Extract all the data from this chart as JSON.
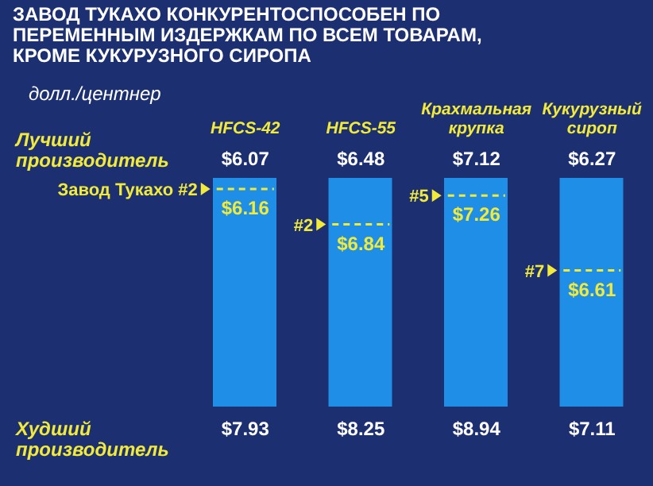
{
  "chart_data": {
    "type": "other",
    "title": "ЗАВОД ТУКАХО КОНКУРЕНТОСПОСОБЕН ПО ПЕРЕМЕННЫМ ИЗДЕРЖКАМ ПО ВСЕМ ТОВАРАМ, КРОМЕ КУКУРУЗНОГО СИРОПА",
    "ylabel": "долл./центнер",
    "categories": [
      "HFCS-42",
      "HFCS-55",
      "Крахмальная крупка",
      "Кукурузный сироп"
    ],
    "series": [
      {
        "name": "Лучший производитель",
        "values": [
          6.07,
          6.48,
          7.12,
          6.27
        ],
        "value_labels": [
          "$6.07",
          "$6.48",
          "$7.12",
          "$6.27"
        ]
      },
      {
        "name": "Худший производитель",
        "values": [
          7.93,
          8.25,
          8.94,
          7.11
        ],
        "value_labels": [
          "$7.93",
          "$8.25",
          "$8.94",
          "$7.11"
        ]
      },
      {
        "name": "Завод Тукахо",
        "values": [
          6.16,
          6.84,
          7.26,
          6.61
        ],
        "value_labels": [
          "$6.16",
          "$6.84",
          "$7.26",
          "$6.61"
        ]
      }
    ],
    "annotations": [
      "#2",
      "#2",
      "#5",
      "#7"
    ]
  }
}
